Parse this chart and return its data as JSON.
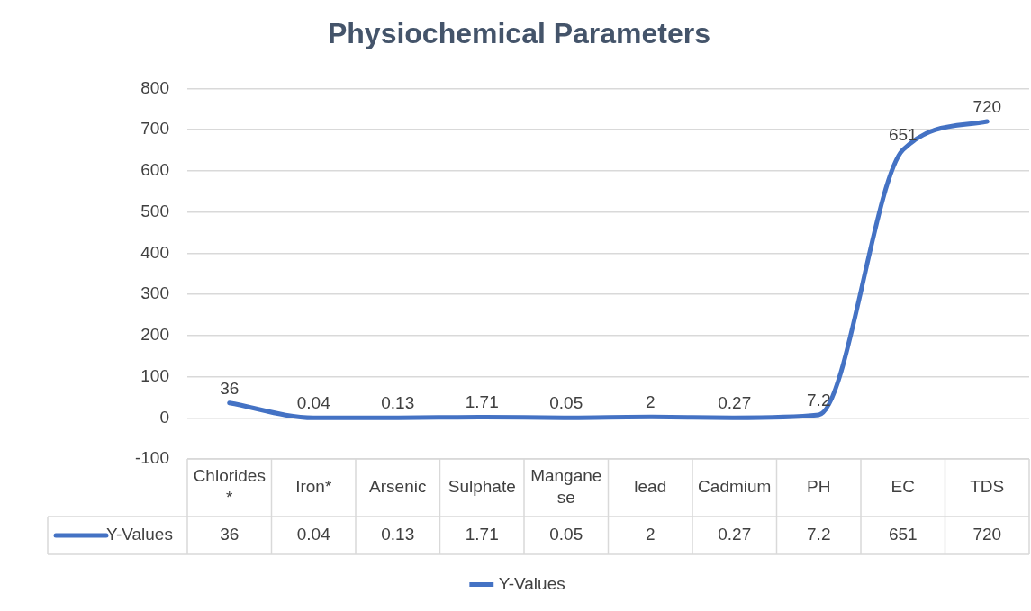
{
  "chart_data": {
    "type": "line",
    "title": "Physiochemical Parameters",
    "categories": [
      "Chlorides*",
      "Iron*",
      "Arsenic",
      "Sulphate",
      "Manganese",
      "lead",
      "Cadmium",
      "PH",
      "EC",
      "TDS"
    ],
    "series": [
      {
        "name": "Y-Values",
        "color": "#4472c4",
        "values": [
          36,
          0.04,
          0.13,
          1.71,
          0.05,
          2,
          0.27,
          7.2,
          651,
          720
        ],
        "value_labels": [
          "36",
          "0.04",
          "0.13",
          "1.71",
          "0.05",
          "2",
          "0.27",
          "7.2",
          "651",
          "720"
        ]
      }
    ],
    "ylim": [
      -100,
      800
    ],
    "yticks": [
      -100,
      0,
      100,
      200,
      300,
      400,
      500,
      600,
      700,
      800
    ],
    "annotations": [
      "36",
      "0.04",
      "0.13",
      "1.71",
      "0.05",
      "2",
      "0.27",
      "7.2",
      "651",
      "720"
    ],
    "grid": "y",
    "legend": "bottom",
    "marker": "none",
    "line_style": "solid"
  }
}
